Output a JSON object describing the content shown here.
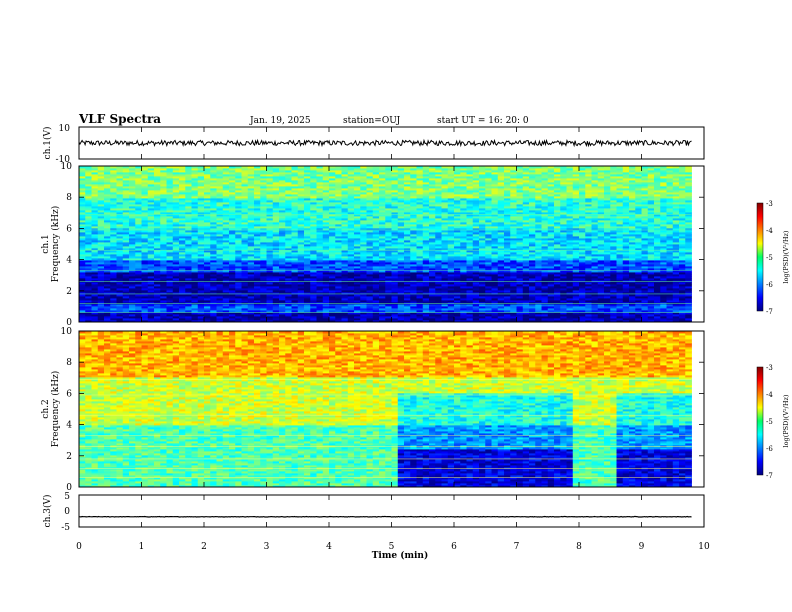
{
  "header": {
    "title": "VLF Spectra",
    "date": "Jan. 19, 2025",
    "station": "station=OUJ",
    "start": "start UT =  16: 20: 0"
  },
  "colorbar": {
    "label": "log(PSD)(V²/Hz)",
    "ticks": [
      "-3",
      "-4",
      "-5",
      "-6",
      "-7"
    ]
  },
  "chart_data": [
    {
      "type": "line",
      "panel": "ch1-waveform",
      "ylabel": "ch.1(V)",
      "ylim": [
        -10,
        10
      ],
      "yticks": [
        "10",
        "-10"
      ],
      "xlim": [
        0,
        10
      ],
      "trace_level": 0
    },
    {
      "type": "heatmap",
      "panel": "ch1-spectrogram",
      "ylabel_top": "ch.1",
      "ylabel": "Frequency (kHz)",
      "ylim": [
        0,
        10
      ],
      "yticks": [
        "0",
        "2",
        "4",
        "6",
        "8",
        "10"
      ],
      "xlim": [
        0,
        10
      ],
      "data_end_min": 9.8,
      "colorscale": "jet",
      "clim": [
        -7,
        -3
      ]
    },
    {
      "type": "heatmap",
      "panel": "ch2-spectrogram",
      "ylabel_top": "ch.2",
      "ylabel": "Frequency (kHz)",
      "ylim": [
        0,
        10
      ],
      "yticks": [
        "0",
        "2",
        "4",
        "6",
        "8",
        "10"
      ],
      "xlim": [
        0,
        10
      ],
      "data_end_min": 9.8,
      "colorscale": "jet",
      "clim": [
        -7,
        -3
      ]
    },
    {
      "type": "line",
      "panel": "ch3-waveform",
      "ylabel": "ch.3(V)",
      "ylim": [
        -5,
        5
      ],
      "yticks": [
        "5",
        "0",
        "-5"
      ],
      "xlim": [
        0,
        10
      ],
      "trace_level": -1.8,
      "xlabel": "Time (min)",
      "xticks": [
        "0",
        "1",
        "2",
        "3",
        "4",
        "5",
        "6",
        "7",
        "8",
        "9",
        "10"
      ]
    }
  ]
}
